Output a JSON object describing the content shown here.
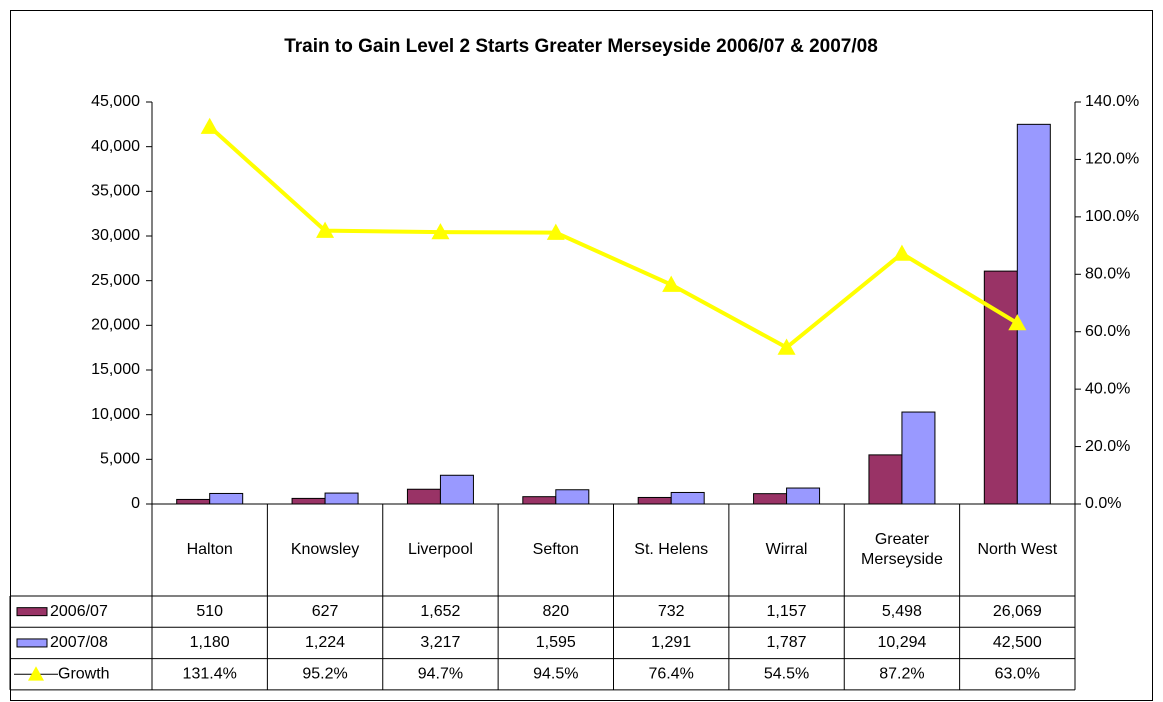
{
  "chart_data": {
    "type": "bar",
    "title": "Train to Gain Level 2 Starts Greater Merseyside 2006/07 & 2007/08",
    "categories": [
      "Halton",
      "Knowsley",
      "Liverpool",
      "Sefton",
      "St. Helens",
      "Wirral",
      "Greater Merseyside",
      "North West"
    ],
    "series": [
      {
        "name": "2006/07",
        "type": "bar",
        "color": "#993366",
        "values": [
          510,
          627,
          1652,
          820,
          732,
          1157,
          5498,
          26069
        ],
        "value_labels": [
          "510",
          "627",
          "1,652",
          "820",
          "732",
          "1,157",
          "5,498",
          "26,069"
        ]
      },
      {
        "name": "2007/08",
        "type": "bar",
        "color": "#9999FF",
        "values": [
          1180,
          1224,
          3217,
          1595,
          1291,
          1787,
          10294,
          42500
        ],
        "value_labels": [
          "1,180",
          "1,224",
          "3,217",
          "1,595",
          "1,291",
          "1,787",
          "10,294",
          "42,500"
        ]
      },
      {
        "name": "Growth",
        "type": "line",
        "axis": "y2",
        "color": "#FFFF00",
        "values": [
          131.4,
          95.2,
          94.7,
          94.5,
          76.4,
          54.5,
          87.2,
          63.0
        ],
        "value_labels": [
          "131.4%",
          "95.2%",
          "94.7%",
          "94.5%",
          "76.4%",
          "54.5%",
          "87.2%",
          "63.0%"
        ]
      }
    ],
    "ylim": [
      0,
      45000
    ],
    "yticks": [
      0,
      {
        "value": 5000,
        "label": "5,000"
      },
      {
        "value": 10000,
        "label": "10,000"
      },
      {
        "value": 15000,
        "label": "15,000"
      },
      {
        "value": 20000,
        "label": "20,000"
      },
      {
        "value": 25000,
        "label": "25,000"
      },
      {
        "value": 30000,
        "label": "30,000"
      },
      {
        "value": 35000,
        "label": "35,000"
      },
      {
        "value": 40000,
        "label": "40,000"
      },
      {
        "value": 45000,
        "label": "45,000"
      }
    ],
    "y2lim": [
      0,
      140
    ],
    "y2ticks": [
      {
        "value": 0,
        "label": "0.0%"
      },
      {
        "value": 20,
        "label": "20.0%"
      },
      {
        "value": 40,
        "label": "40.0%"
      },
      {
        "value": 60,
        "label": "60.0%"
      },
      {
        "value": 80,
        "label": "80.0%"
      },
      {
        "value": 100,
        "label": "100.0%"
      },
      {
        "value": 120,
        "label": "120.0%"
      },
      {
        "value": 140,
        "label": "140.0%"
      }
    ],
    "grid": false
  }
}
